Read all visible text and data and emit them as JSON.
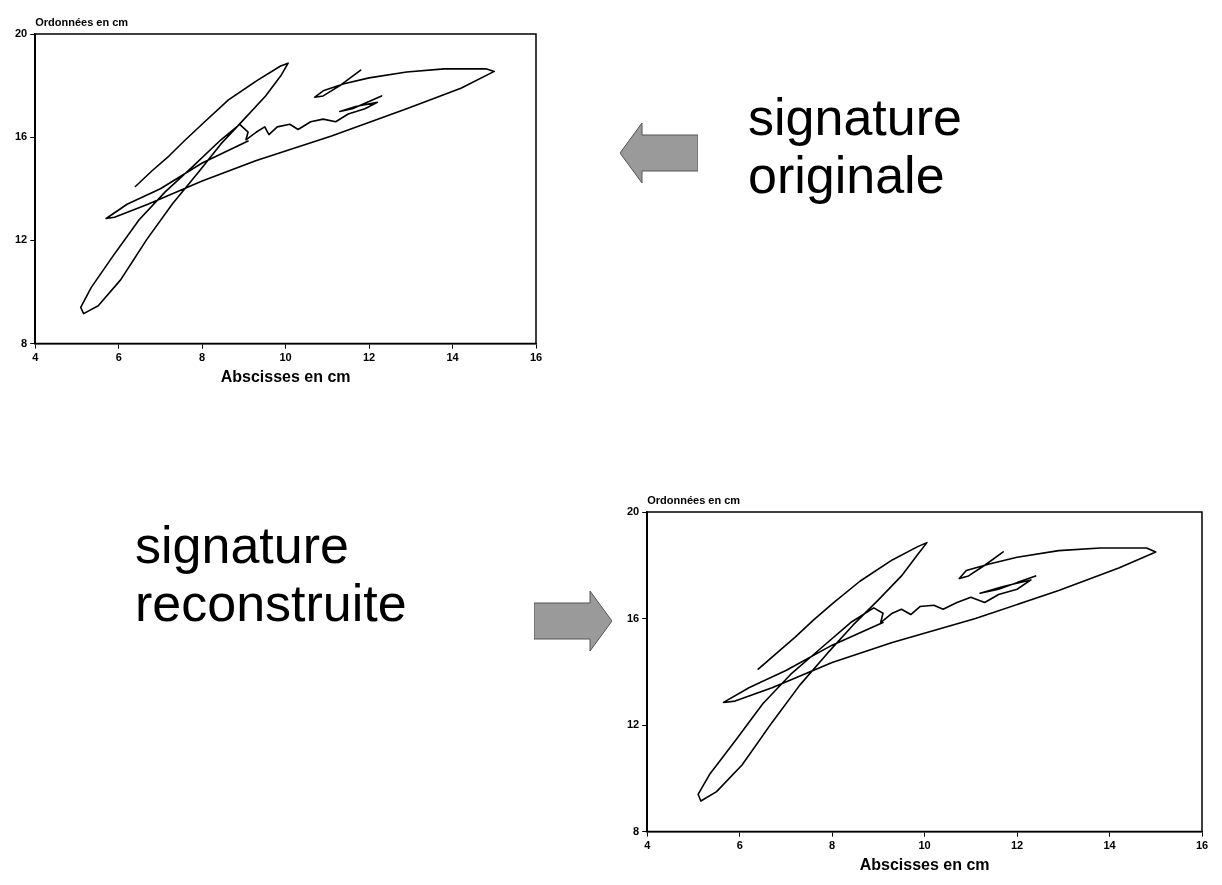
{
  "chart_data": [
    {
      "type": "line",
      "xlabel": "Abscisses en cm",
      "ylabel": "Ordonnées en cm",
      "xlim": [
        4,
        16
      ],
      "xticks": [
        4,
        6,
        8,
        10,
        12,
        14,
        16
      ],
      "ylim": [
        8,
        20
      ],
      "yticks": [
        8,
        12,
        16,
        20
      ],
      "grid": false,
      "legend": false,
      "marker": "none",
      "line_style": "solid",
      "annotations": [
        "signature originale"
      ],
      "series": [
        {
          "color": "#000000",
          "x": [
            6.4,
            6.8,
            7.21,
            7.6,
            8.01,
            8.63,
            9.34,
            9.88,
            10.06,
            9.88,
            9.52,
            8.99,
            8.45,
            7.92,
            7.29,
            6.67,
            6.05,
            5.51,
            5.16,
            5.09,
            5.34,
            5.87,
            6.49,
            7.12,
            7.74,
            8.45,
            8.9,
            9.1,
            9.05,
            9.3,
            9.5,
            9.6,
            9.8,
            10.1,
            10.3,
            10.6,
            10.9,
            11.2,
            11.5,
            11.9,
            12.2,
            11.7,
            11.3,
            11.6,
            12.3,
            null,
            9.1,
            8.0,
            7.0,
            6.2,
            5.7,
            5.9,
            6.7,
            8.0,
            9.3,
            11.1,
            12.9,
            14.2,
            15.0,
            14.8,
            13.8,
            12.9,
            12.0,
            11.4,
            10.9,
            10.7,
            10.9,
            11.3,
            11.8
          ],
          "values": [
            14.09,
            14.7,
            15.28,
            15.9,
            16.52,
            17.45,
            18.22,
            18.76,
            18.87,
            18.37,
            17.6,
            16.67,
            15.74,
            14.66,
            13.42,
            12.03,
            10.48,
            9.47,
            9.16,
            9.4,
            10.17,
            11.41,
            12.8,
            13.89,
            14.81,
            15.9,
            16.5,
            16.2,
            15.9,
            16.2,
            16.4,
            16.1,
            16.4,
            16.5,
            16.3,
            16.6,
            16.7,
            16.6,
            16.9,
            17.1,
            17.35,
            17.2,
            17.0,
            17.1,
            17.6,
            null,
            15.85,
            15.0,
            14.0,
            13.4,
            12.85,
            12.9,
            13.4,
            14.3,
            15.1,
            16.05,
            17.1,
            17.9,
            18.55,
            18.65,
            18.65,
            18.53,
            18.3,
            18.07,
            17.8,
            17.55,
            17.6,
            18.0,
            18.6
          ]
        }
      ]
    },
    {
      "type": "line",
      "xlabel": "Abscisses en cm",
      "ylabel": "Ordonnées en cm",
      "xlim": [
        4,
        16
      ],
      "xticks": [
        4,
        6,
        8,
        10,
        12,
        14,
        16
      ],
      "ylim": [
        8,
        20
      ],
      "yticks": [
        8,
        12,
        16,
        20
      ],
      "grid": false,
      "legend": false,
      "marker": "none",
      "line_style": "solid",
      "annotations": [
        "signature reconstruite"
      ],
      "series": [
        {
          "color": "#000000",
          "x": [
            6.4,
            6.8,
            7.2,
            7.6,
            8.0,
            8.6,
            9.3,
            9.85,
            10.05,
            9.85,
            9.5,
            9.0,
            8.45,
            7.9,
            7.3,
            6.7,
            6.05,
            5.5,
            5.16,
            5.1,
            5.35,
            5.9,
            6.5,
            7.1,
            7.7,
            8.4,
            8.9,
            9.1,
            9.05,
            9.3,
            9.5,
            9.7,
            9.9,
            10.2,
            10.4,
            10.7,
            11.0,
            11.3,
            11.6,
            12.0,
            12.3,
            11.7,
            11.2,
            11.6,
            12.4,
            null,
            9.1,
            8.0,
            7.0,
            6.2,
            5.65,
            5.9,
            6.7,
            8.0,
            9.3,
            11.1,
            12.9,
            14.2,
            15.0,
            14.8,
            13.8,
            12.9,
            12.0,
            11.4,
            10.9,
            10.75,
            10.95,
            11.3,
            11.7
          ],
          "values": [
            14.1,
            14.7,
            15.3,
            15.95,
            16.55,
            17.4,
            18.2,
            18.7,
            18.85,
            18.4,
            17.6,
            16.7,
            15.75,
            14.7,
            13.5,
            12.1,
            10.5,
            9.5,
            9.15,
            9.4,
            10.15,
            11.4,
            12.8,
            13.9,
            14.8,
            15.85,
            16.4,
            16.2,
            15.85,
            16.2,
            16.35,
            16.15,
            16.45,
            16.5,
            16.35,
            16.6,
            16.8,
            16.6,
            16.9,
            17.1,
            17.45,
            17.2,
            16.95,
            17.1,
            17.6,
            null,
            15.85,
            15.0,
            14.05,
            13.4,
            12.85,
            12.9,
            13.4,
            14.35,
            15.1,
            16.0,
            17.05,
            17.9,
            18.5,
            18.65,
            18.65,
            18.55,
            18.3,
            18.05,
            17.8,
            17.5,
            17.6,
            18.0,
            18.5
          ]
        }
      ]
    }
  ]
}
